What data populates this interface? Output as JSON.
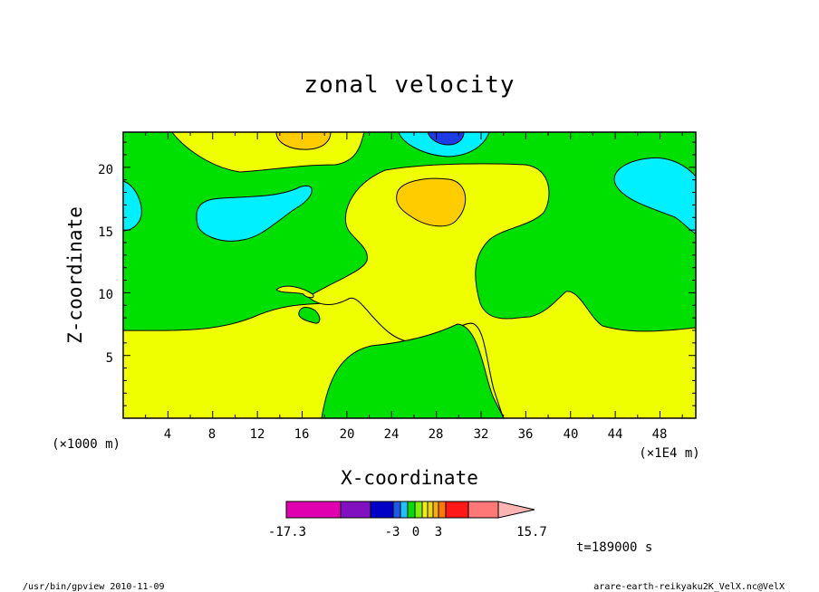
{
  "chart_data": {
    "type": "contour",
    "title": "zonal velocity",
    "xlabel": "X-coordinate",
    "ylabel": "Z-coordinate",
    "x_unit_left": "(×1000 m)",
    "x_unit_right": "(×1E4 m)",
    "xlim": [
      0,
      51.2
    ],
    "ylim": [
      0,
      22.8
    ],
    "x_ticks": [
      "4",
      "8",
      "12",
      "16",
      "20",
      "24",
      "28",
      "32",
      "36",
      "40",
      "44",
      "48"
    ],
    "y_ticks": [
      "5",
      "10",
      "15",
      "20"
    ],
    "colorbar": {
      "min_label": "-17.3",
      "mid_labels": [
        "-3",
        "0",
        "3"
      ],
      "max_label": "15.7",
      "colors": [
        "#e000b0",
        "#8010c0",
        "#0000c8",
        "#1e5ae6",
        "#20c0ff",
        "#00e000",
        "#80f000",
        "#f0f000",
        "#f0d800",
        "#f8b000",
        "#ff7800",
        "#ff1818",
        "#ff7878",
        "#ffb4b4"
      ]
    },
    "time_label": "t=189000 s",
    "field_colors": {
      "green": "#00e000",
      "yellow": "#f0ff00",
      "orange": "#ffcc00",
      "cyan": "#00f0ff",
      "blue": "#1e3ce6"
    }
  },
  "footer": {
    "left": "/usr/bin/gpview  2010-11-09",
    "right": "arare-earth-reikyaku2K_VelX.nc@VelX"
  }
}
